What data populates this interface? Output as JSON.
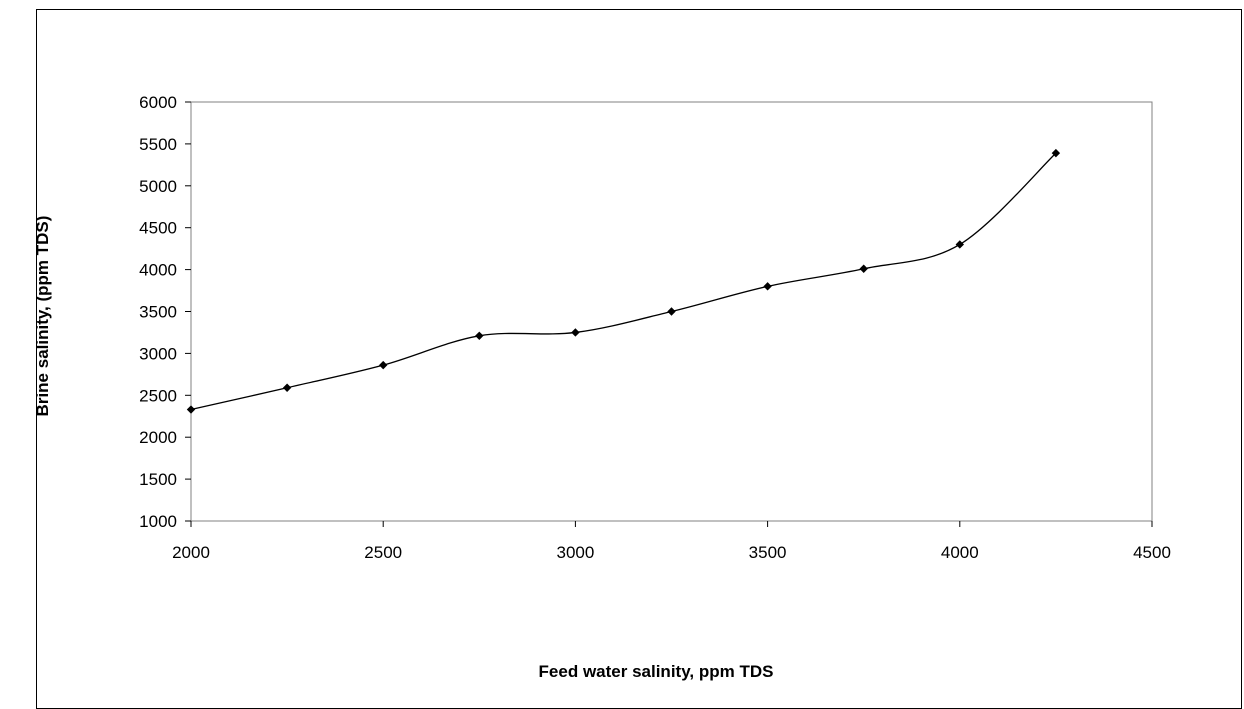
{
  "chart_data": {
    "type": "line",
    "title": "",
    "xlabel": "Feed water salinity, ppm TDS",
    "ylabel": "Brine salinity, (ppm TDS)",
    "xlim": [
      2000,
      4500
    ],
    "ylim": [
      1000,
      6000
    ],
    "x_ticks": [
      2000,
      2500,
      3000,
      3500,
      4000,
      4500
    ],
    "y_ticks": [
      1000,
      1500,
      2000,
      2500,
      3000,
      3500,
      4000,
      4500,
      5000,
      5500,
      6000
    ],
    "grid": false,
    "legend": "none",
    "marker": "diamond",
    "smoothed": true,
    "series": [
      {
        "color": "#000000",
        "x": [
          2000,
          2250,
          2500,
          2750,
          3000,
          3250,
          3500,
          3750,
          4000,
          4250
        ],
        "y": [
          2330,
          2590,
          2860,
          3210,
          3250,
          3500,
          3800,
          4010,
          4300,
          5390
        ]
      }
    ]
  }
}
